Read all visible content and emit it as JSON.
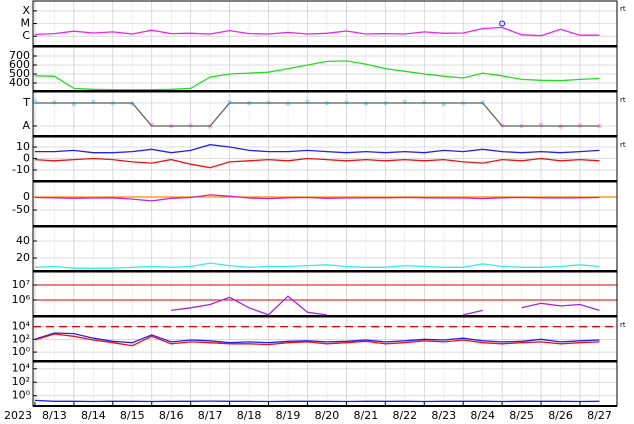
{
  "chart_data": [
    {
      "type": "line",
      "log": true,
      "ylim": [
        1.7e-07,
        0.0006
      ],
      "xlim": [
        12.95,
        27.95
      ],
      "yticks": [
        {
          "value": 1e-06,
          "label": "C"
        },
        {
          "value": 1e-05,
          "label": "M"
        },
        {
          "value": 0.0001,
          "label": "X"
        }
      ],
      "note": "rt",
      "x": [
        13,
        13.5,
        14,
        14.5,
        15,
        15.5,
        16,
        16.5,
        17,
        17.5,
        18,
        18.5,
        19,
        19.5,
        20,
        20.5,
        21,
        21.5,
        22,
        22.5,
        23,
        23.5,
        24,
        24.5,
        25,
        25.5,
        26,
        26.5,
        27,
        27.5
      ],
      "series": [
        {
          "color": "#ee22ee",
          "values": [
            1.4e-06,
            1.6e-06,
            2.5e-06,
            1.8e-06,
            2.2e-06,
            1.5e-06,
            3e-06,
            1.6e-06,
            1.7e-06,
            1.5e-06,
            2.8e-06,
            1.6e-06,
            1.5e-06,
            2e-06,
            1.5e-06,
            1.7e-06,
            2.6e-06,
            1.5e-06,
            1.6e-06,
            1.5e-06,
            2.2e-06,
            1.7e-06,
            1.8e-06,
            4e-06,
            5e-06,
            1.3e-06,
            1.1e-06,
            3.5e-06,
            1.2e-06,
            1.2e-06
          ]
        }
      ],
      "markers": [
        {
          "x": 25,
          "value": 1e-05,
          "color": "#3333ff"
        }
      ]
    },
    {
      "type": "line",
      "log": false,
      "ylim": [
        311,
        800
      ],
      "xlim": [
        12.95,
        27.95
      ],
      "yticks": [
        400,
        500,
        600,
        700
      ],
      "x": [
        13,
        13.5,
        14,
        14.5,
        15,
        15.5,
        16,
        16.5,
        17,
        17.5,
        18,
        18.5,
        19,
        19.5,
        20,
        20.5,
        21,
        21.5,
        22,
        22.5,
        23,
        23.5,
        24,
        24.5,
        25,
        25.5,
        26,
        26.5,
        27,
        27.5
      ],
      "series": [
        {
          "color": "#22dd22",
          "values": [
            480,
            475,
            340,
            330,
            325,
            325,
            325,
            330,
            340,
            465,
            500,
            510,
            520,
            560,
            600,
            640,
            645,
            610,
            560,
            530,
            500,
            475,
            455,
            510,
            480,
            440,
            430,
            425,
            440,
            450
          ]
        }
      ]
    },
    {
      "type": "line",
      "log": false,
      "ylim": [
        -1.87,
        1.96
      ],
      "xlim": [
        12.95,
        27.95
      ],
      "yticks": [
        {
          "value": 1,
          "label": "T"
        },
        {
          "value": -1,
          "label": "A"
        }
      ],
      "note": "rt",
      "x": [
        13,
        13.5,
        14,
        14.5,
        15,
        15.5,
        16,
        16.5,
        17,
        17.5,
        18,
        18.5,
        19,
        19.5,
        20,
        20.5,
        21,
        21.5,
        22,
        22.5,
        23,
        23.5,
        24,
        24.5,
        25,
        25.5,
        26,
        26.5,
        27,
        27.5
      ],
      "series": [
        {
          "color": "#99ddff",
          "style": "dots",
          "values": [
            1.15,
            1.05,
            0.9,
            1.1,
            1,
            0.95,
            null,
            null,
            null,
            null,
            1.1,
            1,
            1.05,
            0.95,
            1.1,
            1,
            1.05,
            0.95,
            1,
            1.1,
            1.05,
            0.9,
            1,
            1.05,
            null,
            null,
            null,
            null,
            null,
            null
          ]
        },
        {
          "color": "#ffaaee",
          "style": "dots",
          "values": [
            null,
            null,
            null,
            null,
            null,
            null,
            -0.9,
            -1,
            -0.95,
            -1.05,
            null,
            null,
            null,
            null,
            null,
            null,
            null,
            null,
            null,
            null,
            null,
            null,
            null,
            null,
            -0.95,
            -1,
            -0.9,
            -1.05,
            -0.95,
            -1
          ]
        },
        {
          "color": "#556655",
          "values": [
            1,
            1,
            1,
            1,
            1,
            1,
            -1,
            -1,
            -1,
            -1,
            1,
            1,
            1,
            1,
            1,
            1,
            1,
            1,
            1,
            1,
            1,
            1,
            1,
            1,
            -1,
            -1,
            -1,
            -1,
            -1,
            -1
          ]
        }
      ]
    },
    {
      "type": "line",
      "log": false,
      "ylim": [
        -19.6,
        18.7
      ],
      "xlim": [
        12.95,
        27.95
      ],
      "yticks": [
        10,
        0,
        -10
      ],
      "note": "rt",
      "x": [
        13,
        13.5,
        14,
        14.5,
        15,
        15.5,
        16,
        16.5,
        17,
        17.5,
        18,
        18.5,
        19,
        19.5,
        20,
        20.5,
        21,
        21.5,
        22,
        22.5,
        23,
        23.5,
        24,
        24.5,
        25,
        25.5,
        26,
        26.5,
        27,
        27.5
      ],
      "series": [
        {
          "color": "#2222ee",
          "values": [
            6,
            6,
            7,
            5,
            5,
            6,
            8,
            5,
            7,
            12,
            10,
            7,
            6,
            6,
            7,
            6,
            5,
            6,
            5,
            6,
            5,
            7,
            6,
            8,
            6,
            5,
            6,
            5,
            6,
            7
          ]
        },
        {
          "color": "#ee1111",
          "values": [
            -1,
            -2,
            -1,
            0,
            -1,
            -3,
            -4,
            -1,
            -5,
            -8,
            -3,
            -2,
            -1,
            -2,
            0,
            -1,
            -2,
            -1,
            -2,
            -1,
            -2,
            -1,
            -3,
            -4,
            -1,
            -2,
            0,
            -2,
            -1,
            -2
          ]
        }
      ]
    },
    {
      "type": "line",
      "log": false,
      "ylim": [
        -111.5,
        57.7
      ],
      "xlim": [
        12.95,
        27.95
      ],
      "yticks": [
        0,
        -50
      ],
      "thresholds": [
        {
          "value": 0,
          "color": "#ff8800",
          "dash": false
        }
      ],
      "x": [
        13,
        13.5,
        14,
        14.5,
        15,
        15.5,
        16,
        16.5,
        17,
        17.5,
        18,
        18.5,
        19,
        19.5,
        20,
        20.5,
        21,
        21.5,
        22,
        22.5,
        23,
        23.5,
        24,
        24.5,
        25,
        25.5,
        26,
        26.5,
        27,
        27.5
      ],
      "series": [
        {
          "color": "#cc22cc",
          "values": [
            -2,
            -3,
            -5,
            -4,
            -3,
            -8,
            -15,
            -5,
            -2,
            8,
            3,
            -4,
            -6,
            -3,
            -2,
            -5,
            -4,
            -3,
            -3,
            -2,
            -3,
            -4,
            -4,
            -6,
            -3,
            -2,
            -3,
            -4,
            -3,
            -2
          ]
        }
      ]
    },
    {
      "type": "line",
      "log": false,
      "ylim": [
        4.7,
        56.5
      ],
      "xlim": [
        12.95,
        27.95
      ],
      "yticks": [
        20,
        40
      ],
      "x": [
        13,
        13.5,
        14,
        14.5,
        15,
        15.5,
        16,
        16.5,
        17,
        17.5,
        18,
        18.5,
        19,
        19.5,
        20,
        20.5,
        21,
        21.5,
        22,
        22.5,
        23,
        23.5,
        24,
        24.5,
        25,
        25.5,
        26,
        26.5,
        27,
        27.5
      ],
      "series": [
        {
          "color": "#33eeee",
          "values": [
            9,
            10,
            8,
            8,
            8,
            9,
            10,
            9,
            10,
            14,
            11,
            9,
            10,
            10,
            11,
            12,
            10,
            9,
            9,
            11,
            10,
            9,
            9,
            13,
            10,
            9,
            9,
            10,
            12,
            10
          ]
        }
      ]
    },
    {
      "type": "line",
      "log": true,
      "ylim": [
        85000,
        74000000
      ],
      "xlim": [
        12.95,
        27.95
      ],
      "yticks": [
        {
          "value": 10000000,
          "label": "10⁷"
        },
        {
          "value": 1000000,
          "label": "10⁶"
        }
      ],
      "grid_color": "#dd0000",
      "x": [
        13,
        13.5,
        14,
        14.5,
        15,
        15.5,
        16,
        16.5,
        17,
        17.5,
        18,
        18.5,
        19,
        19.5,
        20,
        20.5,
        21,
        21.5,
        22,
        22.5,
        23,
        23.5,
        24,
        24.5,
        25,
        25.5,
        26,
        26.5,
        27,
        27.5
      ],
      "series": [
        {
          "color": "#aa22dd",
          "values": [
            null,
            100000,
            null,
            null,
            150000,
            null,
            null,
            200000,
            300000,
            500000,
            1500000,
            300000,
            100000,
            1800000,
            150000,
            100000,
            null,
            null,
            null,
            120000,
            null,
            null,
            100000,
            200000,
            null,
            300000,
            600000,
            400000,
            500000,
            200000
          ]
        }
      ]
    },
    {
      "type": "line",
      "log": true,
      "ylim": [
        0.04,
        320000
      ],
      "xlim": [
        12.95,
        27.95
      ],
      "yticks": [
        {
          "value": 10000,
          "label": "10⁴"
        },
        {
          "value": 100,
          "label": "10²"
        },
        {
          "value": 1,
          "label": "10⁰"
        }
      ],
      "thresholds": [
        {
          "value": 10000,
          "color": "#e00000",
          "dash": true
        }
      ],
      "note": "rt",
      "x": [
        13,
        13.5,
        14,
        14.5,
        15,
        15.5,
        16,
        16.5,
        17,
        17.5,
        18,
        18.5,
        19,
        19.5,
        20,
        20.5,
        21,
        21.5,
        22,
        22.5,
        23,
        23.5,
        24,
        24.5,
        25,
        25.5,
        26,
        26.5,
        27,
        27.5
      ],
      "series": [
        {
          "color": "#2222ee",
          "values": [
            100,
            1000,
            800,
            150,
            50,
            30,
            500,
            40,
            80,
            60,
            30,
            40,
            30,
            50,
            60,
            40,
            50,
            80,
            40,
            60,
            100,
            80,
            150,
            60,
            40,
            50,
            100,
            40,
            60,
            80
          ]
        },
        {
          "color": "#ee1111",
          "values": [
            80,
            700,
            300,
            80,
            30,
            10,
            300,
            20,
            40,
            30,
            20,
            20,
            15,
            30,
            40,
            20,
            30,
            50,
            20,
            30,
            60,
            40,
            80,
            30,
            20,
            30,
            40,
            20,
            30,
            40
          ]
        }
      ]
    },
    {
      "type": "line",
      "log": true,
      "ylim": [
        0.03,
        100000
      ],
      "xlim": [
        12.95,
        27.95
      ],
      "yticks": [
        {
          "value": 10000,
          "label": "10⁴"
        },
        {
          "value": 100,
          "label": "10²"
        },
        {
          "value": 1,
          "label": "10⁰"
        }
      ],
      "xlabel": "2023",
      "xticks": [
        {
          "value": 13,
          "label": "8/13"
        },
        {
          "value": 14,
          "label": "8/14"
        },
        {
          "value": 15,
          "label": "8/15"
        },
        {
          "value": 16,
          "label": "8/16"
        },
        {
          "value": 17,
          "label": "8/17"
        },
        {
          "value": 18,
          "label": "8/18"
        },
        {
          "value": 19,
          "label": "8/19"
        },
        {
          "value": 20,
          "label": "8/20"
        },
        {
          "value": 21,
          "label": "8/21"
        },
        {
          "value": 22,
          "label": "8/22"
        },
        {
          "value": 23,
          "label": "8/23"
        },
        {
          "value": 24,
          "label": "8/24"
        },
        {
          "value": 25,
          "label": "8/25"
        },
        {
          "value": 26,
          "label": "8/26"
        },
        {
          "value": 27,
          "label": "8/27"
        }
      ],
      "x": [
        13,
        13.5,
        14,
        14.5,
        15,
        15.5,
        16,
        16.5,
        17,
        17.5,
        18,
        18.5,
        19,
        19.5,
        20,
        20.5,
        21,
        21.5,
        22,
        22.5,
        23,
        23.5,
        24,
        24.5,
        25,
        25.5,
        26,
        26.5,
        27,
        27.5
      ],
      "series": [
        {
          "color": "#2222ee",
          "values": [
            0.2,
            0.15,
            0.15,
            0.14,
            0.15,
            0.15,
            0.14,
            0.15,
            0.15,
            0.16,
            0.15,
            0.15,
            0.14,
            0.15,
            0.15,
            0.15,
            0.14,
            0.15,
            0.15,
            0.15,
            0.14,
            0.15,
            0.15,
            0.15,
            0.14,
            0.15,
            0.15,
            0.15,
            0.14,
            0.15
          ]
        }
      ]
    }
  ]
}
